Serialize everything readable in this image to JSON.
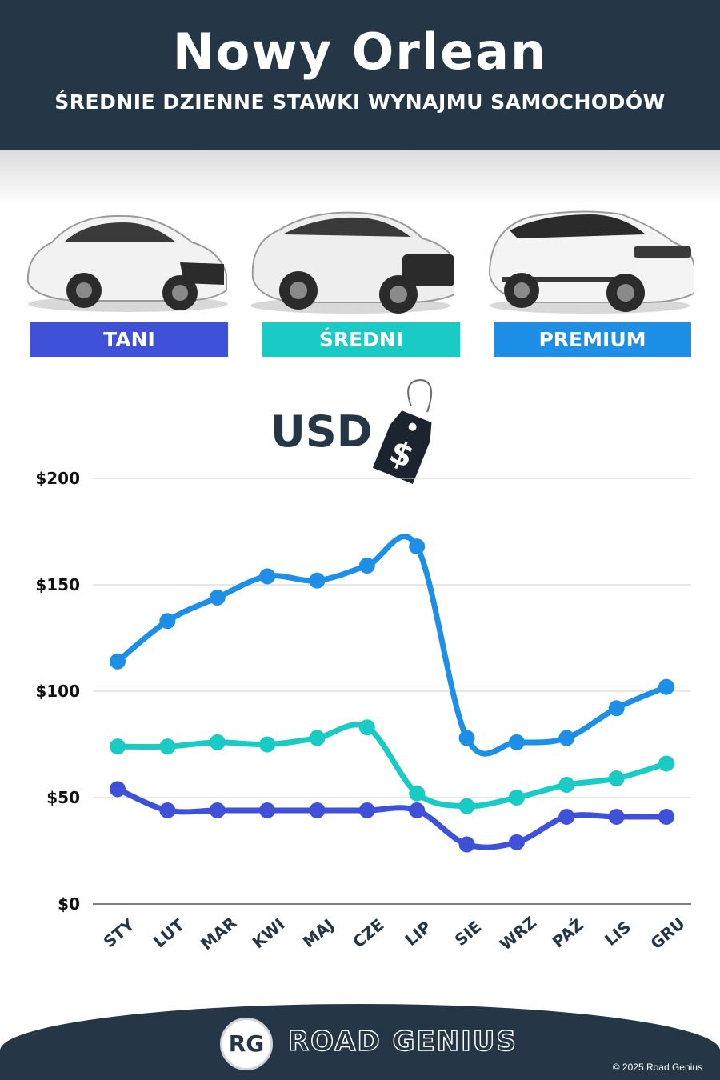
{
  "header": {
    "title": "Nowy Orlean",
    "subtitle": "ŚREDNIE DZIENNE STAWKI WYNAJMU SAMOCHODÓW"
  },
  "categories": [
    {
      "label": "TANI",
      "color": "#3f51d8",
      "icon": "hatchback-car-icon"
    },
    {
      "label": "ŚREDNI",
      "color": "#19cbc4",
      "icon": "suv-car-icon"
    },
    {
      "label": "PREMIUM",
      "color": "#1e8fe6",
      "icon": "luxury-suv-car-icon"
    }
  ],
  "currency": {
    "label": "USD",
    "tag_symbol": "$"
  },
  "chart_data": {
    "type": "line",
    "categories": [
      "STY",
      "LUT",
      "MAR",
      "KWI",
      "MAJ",
      "CZE",
      "LIP",
      "SIE",
      "WRZ",
      "PAŹ",
      "LIS",
      "GRU"
    ],
    "series": [
      {
        "name": "TANI",
        "color": "#3f51d8",
        "values": [
          54,
          44,
          44,
          44,
          44,
          44,
          44,
          28,
          29,
          41,
          41,
          41
        ]
      },
      {
        "name": "ŚREDNI",
        "color": "#19cbc4",
        "values": [
          74,
          74,
          76,
          75,
          78,
          83,
          52,
          46,
          50,
          56,
          59,
          66
        ]
      },
      {
        "name": "PREMIUM",
        "color": "#1e8fe6",
        "values": [
          114,
          133,
          144,
          154,
          152,
          159,
          168,
          78,
          76,
          78,
          92,
          102
        ]
      }
    ],
    "yticks": [
      "$0",
      "$50",
      "$100",
      "$150",
      "$200"
    ],
    "ylim": [
      0,
      200
    ],
    "grid": true
  },
  "footer": {
    "logo_initials": "RG",
    "brand": "ROAD GENIUS",
    "copyright": "© 2025 Road Genius"
  }
}
